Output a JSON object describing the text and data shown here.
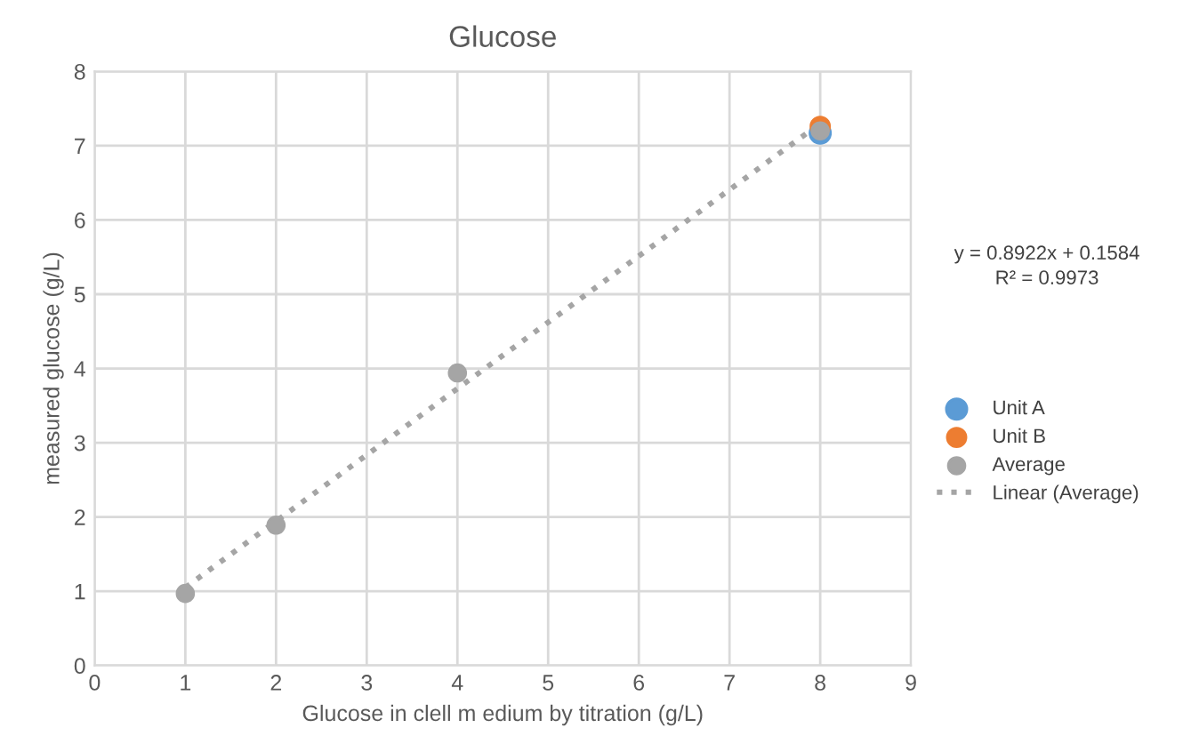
{
  "chart_data": {
    "type": "scatter",
    "title": "Glucose",
    "xlabel": "Glucose in clell m edium by titration (g/L)",
    "ylabel": "measured glucose (g/L)",
    "x": [
      1,
      2,
      4,
      8
    ],
    "series": [
      {
        "name": "Unit A",
        "color": "#5b9bd5",
        "values": [
          null,
          null,
          null,
          7.17
        ]
      },
      {
        "name": "Unit B",
        "color": "#ed7d31",
        "values": [
          null,
          null,
          null,
          7.26
        ]
      },
      {
        "name": "Average",
        "color": "#a5a5a5",
        "values": [
          0.97,
          1.89,
          3.94,
          7.2
        ]
      },
      {
        "name": "Linear (Average)",
        "type": "line",
        "color": "#a5a5a5",
        "line_style": "dotted",
        "marker": "none",
        "x": [
          1,
          8
        ],
        "values": [
          1.05,
          7.3
        ]
      }
    ],
    "annotations": [
      "y = 0.8922x + 0.1584",
      "R² = 0.9973"
    ],
    "xlim": [
      0,
      9
    ],
    "xticks": [
      0,
      1,
      2,
      3,
      4,
      5,
      6,
      7,
      8,
      9
    ],
    "ylim": [
      0,
      8
    ],
    "yticks": [
      0,
      1,
      2,
      3,
      4,
      5,
      6,
      7,
      8
    ],
    "grid": true,
    "legend": "right",
    "marker": "circle"
  }
}
